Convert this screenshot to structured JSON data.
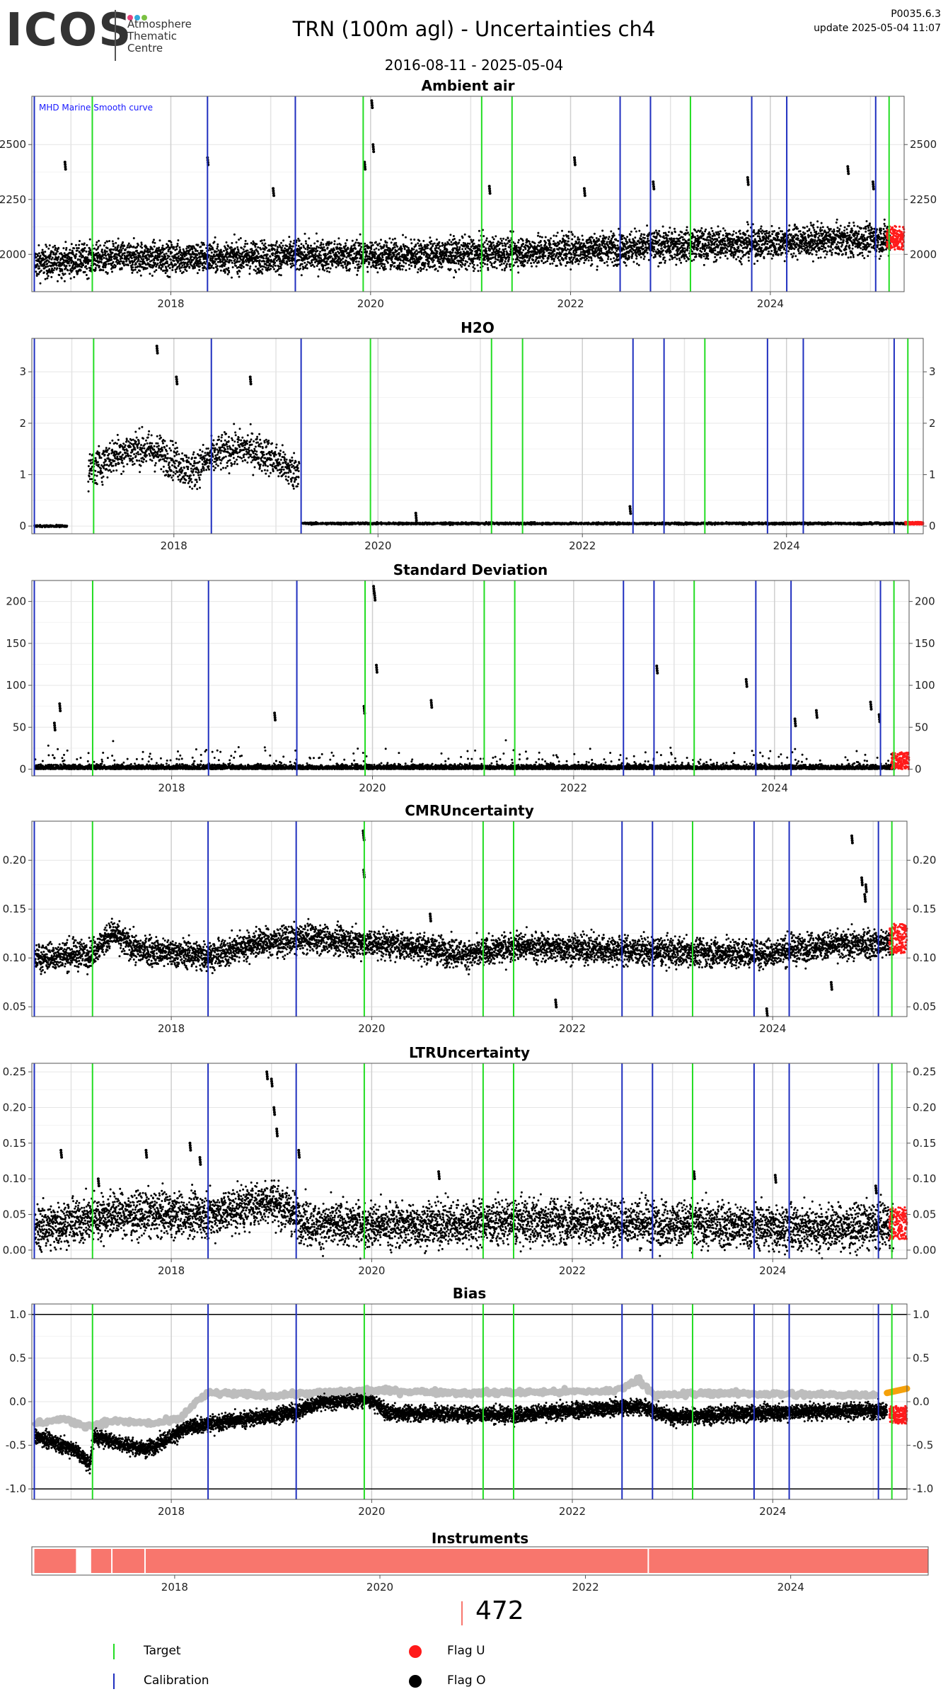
{
  "header": {
    "logo_text": "ICOS",
    "logo_sub": [
      "Atmosphere",
      "Thematic",
      "Centre"
    ],
    "logo_dot_colors": [
      "#E8417A",
      "#33A9DB",
      "#7BC142"
    ],
    "title": "TRN  (100m agl) - Uncertainties ch4",
    "date_range": "2016-08-11 - 2025-05-04",
    "version": "P0035.6.3",
    "update": "update  2025-05-04 11:07"
  },
  "colors": {
    "target": "#22DD22",
    "calibration": "#1F2FBF",
    "flag_u": "#FF1A1A",
    "flag_o": "#000000",
    "bias_reference": "#BDBDBD",
    "bias_reference_recent": "#F5A10A",
    "instrument": "#F8766D"
  },
  "chart_data": {
    "type": "scatter",
    "x_range": [
      "2016-08-11",
      "2025-05-04"
    ],
    "x_ticks": [
      "2018",
      "2020",
      "2022",
      "2024"
    ],
    "target_dates": [
      "2017-03-20",
      "2019-12-05",
      "2021-02-10",
      "2021-06-01",
      "2023-03-15",
      "2025-03-10"
    ],
    "calibration_dates": [
      "2016-08-20",
      "2018-05-15",
      "2019-04-01",
      "2022-07-01",
      "2022-10-20",
      "2023-10-25",
      "2024-03-01",
      "2025-01-20"
    ],
    "panels": [
      {
        "title": "Ambient air",
        "annotation": "MHD Marine Smooth curve",
        "ylim": [
          1830,
          2720
        ],
        "y_ticks": [
          2000,
          2250,
          2500
        ],
        "tick_labels": [
          "2000",
          "2250",
          "2500"
        ],
        "baseline": [
          [
            "2016-09-01",
            1960
          ],
          [
            "2017-06-01",
            1985
          ],
          [
            "2018-06-01",
            1985
          ],
          [
            "2019-06-01",
            1995
          ],
          [
            "2020-06-01",
            1995
          ],
          [
            "2021-06-01",
            2010
          ],
          [
            "2022-06-01",
            2030
          ],
          [
            "2023-06-01",
            2045
          ],
          [
            "2024-06-01",
            2060
          ],
          [
            "2025-03-15",
            2070
          ]
        ],
        "spread": 70,
        "spikes": [
          [
            "2016-12-10",
            2420
          ],
          [
            "2018-05-15",
            2440
          ],
          [
            "2019-01-10",
            2300
          ],
          [
            "2019-12-10",
            2420
          ],
          [
            "2020-01-05",
            2700
          ],
          [
            "2020-01-10",
            2500
          ],
          [
            "2021-03-10",
            2310
          ],
          [
            "2022-01-15",
            2440
          ],
          [
            "2022-02-20",
            2300
          ],
          [
            "2022-10-30",
            2330
          ],
          [
            "2023-10-10",
            2350
          ],
          [
            "2024-10-10",
            2400
          ],
          [
            "2025-01-10",
            2330
          ]
        ],
        "recent_flag_u": [
          2020,
          2130
        ]
      },
      {
        "title": "H2O",
        "ylim": [
          -0.15,
          3.65
        ],
        "y_ticks": [
          0,
          1,
          2,
          3
        ],
        "tick_labels": [
          "0",
          "1",
          "2",
          "3"
        ],
        "segments": [
          {
            "start": "2016-08-20",
            "end": "2016-12-15",
            "level": 0.0,
            "spread": 0.02
          },
          {
            "start": "2017-03-01",
            "end": "2019-03-25",
            "level": 1.05,
            "spread": 0.35,
            "hump": 0.45
          },
          {
            "start": "2019-04-05",
            "end": "2025-03-20",
            "level": 0.05,
            "spread": 0.02
          }
        ],
        "spikes": [
          [
            "2017-11-01",
            3.5
          ],
          [
            "2018-01-10",
            2.9
          ],
          [
            "2018-10-01",
            2.9
          ],
          [
            "2020-05-15",
            0.25
          ],
          [
            "2022-06-20",
            0.38
          ]
        ],
        "recent_flag_u": [
          0.03,
          0.08
        ]
      },
      {
        "title": "Standard Deviation",
        "ylim": [
          -8,
          225
        ],
        "y_ticks": [
          0,
          50,
          100,
          150,
          200
        ],
        "tick_labels": [
          "0",
          "50",
          "100",
          "150",
          "200"
        ],
        "baseline": [
          [
            "2016-09-01",
            2
          ],
          [
            "2025-03-15",
            2
          ]
        ],
        "spread": 12,
        "spikes": [
          [
            "2016-11-20",
            78
          ],
          [
            "2016-11-01",
            55
          ],
          [
            "2019-12-01",
            75
          ],
          [
            "2020-01-05",
            218
          ],
          [
            "2020-01-08",
            210
          ],
          [
            "2020-01-15",
            124
          ],
          [
            "2020-08-01",
            82
          ],
          [
            "2019-01-10",
            67
          ],
          [
            "2022-10-30",
            123
          ],
          [
            "2023-09-20",
            107
          ],
          [
            "2024-06-01",
            70
          ],
          [
            "2024-03-15",
            60
          ],
          [
            "2024-12-15",
            80
          ],
          [
            "2025-01-15",
            65
          ]
        ],
        "recent_flag_u": [
          0,
          20
        ]
      },
      {
        "title": "CMRUncertainty",
        "ylim": [
          0.04,
          0.24
        ],
        "y_ticks": [
          0.05,
          0.1,
          0.15,
          0.2
        ],
        "tick_labels": [
          "0.05",
          "0.10",
          "0.15",
          "0.20"
        ],
        "baseline": [
          [
            "2016-09-01",
            0.1
          ],
          [
            "2017-03-15",
            0.105
          ],
          [
            "2017-06-01",
            0.125
          ],
          [
            "2017-09-01",
            0.108
          ],
          [
            "2018-06-01",
            0.102
          ],
          [
            "2018-11-01",
            0.115
          ],
          [
            "2019-06-01",
            0.12
          ],
          [
            "2020-01-01",
            0.115
          ],
          [
            "2020-06-01",
            0.112
          ],
          [
            "2021-01-01",
            0.103
          ],
          [
            "2021-06-01",
            0.112
          ],
          [
            "2022-06-01",
            0.108
          ],
          [
            "2023-06-01",
            0.105
          ],
          [
            "2023-12-01",
            0.104
          ],
          [
            "2024-06-01",
            0.112
          ],
          [
            "2025-03-15",
            0.115
          ]
        ],
        "spread": 0.014,
        "spikes": [
          [
            "2019-12-01",
            0.23
          ],
          [
            "2019-12-02",
            0.228
          ],
          [
            "2019-12-03",
            0.19
          ],
          [
            "2020-08-01",
            0.145
          ],
          [
            "2021-11-01",
            0.057
          ],
          [
            "2024-10-15",
            0.225
          ],
          [
            "2024-11-20",
            0.182
          ],
          [
            "2024-12-01",
            0.165
          ],
          [
            "2024-12-05",
            0.175
          ],
          [
            "2023-12-10",
            0.048
          ],
          [
            "2024-08-01",
            0.075
          ]
        ],
        "recent_flag_u": [
          0.105,
          0.135
        ]
      },
      {
        "title": "LTRUncertainty",
        "ylim": [
          -0.012,
          0.262
        ],
        "y_ticks": [
          0.0,
          0.05,
          0.1,
          0.15,
          0.2,
          0.25
        ],
        "tick_labels": [
          "0.00",
          "0.05",
          "0.10",
          "0.15",
          "0.20",
          "0.25"
        ],
        "baseline": [
          [
            "2016-09-01",
            0.03
          ],
          [
            "2017-06-01",
            0.05
          ],
          [
            "2018-06-01",
            0.05
          ],
          [
            "2019-01-01",
            0.07
          ],
          [
            "2019-06-01",
            0.035
          ],
          [
            "2020-06-01",
            0.035
          ],
          [
            "2021-06-01",
            0.04
          ],
          [
            "2022-06-01",
            0.04
          ],
          [
            "2023-06-01",
            0.035
          ],
          [
            "2024-06-01",
            0.03
          ],
          [
            "2025-03-15",
            0.035
          ]
        ],
        "spread": 0.03,
        "spikes": [
          [
            "2016-11-25",
            0.14
          ],
          [
            "2017-04-10",
            0.1
          ],
          [
            "2017-10-01",
            0.14
          ],
          [
            "2018-03-10",
            0.15
          ],
          [
            "2018-04-15",
            0.13
          ],
          [
            "2018-12-15",
            0.25
          ],
          [
            "2019-01-01",
            0.24
          ],
          [
            "2019-01-10",
            0.2
          ],
          [
            "2019-01-20",
            0.17
          ],
          [
            "2019-04-10",
            0.14
          ],
          [
            "2020-09-01",
            0.11
          ],
          [
            "2023-03-20",
            0.11
          ],
          [
            "2024-01-10",
            0.105
          ],
          [
            "2025-01-10",
            0.09
          ]
        ],
        "recent_flag_u": [
          0.015,
          0.06
        ]
      },
      {
        "title": "Bias",
        "ylim": [
          -1.12,
          1.12
        ],
        "y_ticks": [
          -1.0,
          -0.5,
          0.0,
          0.5,
          1.0
        ],
        "tick_labels": [
          "-1.0",
          "-0.5",
          "0.0",
          "0.5",
          "1.0"
        ],
        "hlines": [
          -1.0,
          1.0
        ],
        "reference_curve": [
          [
            "2016-08-20",
            -0.25
          ],
          [
            "2016-12-01",
            -0.2
          ],
          [
            "2017-03-01",
            -0.28
          ],
          [
            "2017-06-01",
            -0.22
          ],
          [
            "2017-11-01",
            -0.25
          ],
          [
            "2018-02-01",
            -0.2
          ],
          [
            "2018-04-01",
            0.0
          ],
          [
            "2018-05-20",
            0.1
          ],
          [
            "2019-01-01",
            0.07
          ],
          [
            "2019-06-01",
            0.1
          ],
          [
            "2020-01-01",
            0.13
          ],
          [
            "2021-01-01",
            0.1
          ],
          [
            "2022-06-01",
            0.12
          ],
          [
            "2022-09-01",
            0.25
          ],
          [
            "2022-11-01",
            0.07
          ],
          [
            "2023-06-01",
            0.1
          ],
          [
            "2024-06-01",
            0.08
          ],
          [
            "2025-01-20",
            0.08
          ]
        ],
        "reference_curve_recent": [
          [
            "2025-02-20",
            0.1
          ],
          [
            "2025-05-04",
            0.15
          ]
        ],
        "baseline": [
          [
            "2016-09-01",
            -0.4
          ],
          [
            "2017-01-15",
            -0.55
          ],
          [
            "2017-03-10",
            -0.72
          ],
          [
            "2017-03-25",
            -0.4
          ],
          [
            "2017-10-01",
            -0.55
          ],
          [
            "2018-03-01",
            -0.3
          ],
          [
            "2018-06-01",
            -0.25
          ],
          [
            "2019-04-01",
            -0.12
          ],
          [
            "2019-07-01",
            0.0
          ],
          [
            "2020-01-01",
            0.02
          ],
          [
            "2020-03-01",
            -0.13
          ],
          [
            "2021-06-01",
            -0.15
          ],
          [
            "2022-09-01",
            -0.05
          ],
          [
            "2023-01-01",
            -0.18
          ],
          [
            "2024-01-01",
            -0.12
          ],
          [
            "2025-01-01",
            -0.1
          ]
        ],
        "spread": 0.09,
        "recent_flag_u": [
          -0.25,
          -0.05
        ]
      }
    ],
    "instruments_panel": {
      "title": "Instruments",
      "blocks": [
        [
          "2016-08-20",
          "2017-01-15"
        ],
        [
          "2017-03-10",
          "2017-05-20"
        ],
        [
          "2017-05-25",
          "2017-09-15"
        ],
        [
          "2017-09-20",
          "2022-08-10"
        ],
        [
          "2022-08-15",
          "2025-05-04"
        ]
      ]
    },
    "instrument_id": "472",
    "legend": {
      "target": "Target",
      "calibration": "Calibration",
      "flag_u": "Flag U",
      "flag_o": "Flag O"
    }
  }
}
